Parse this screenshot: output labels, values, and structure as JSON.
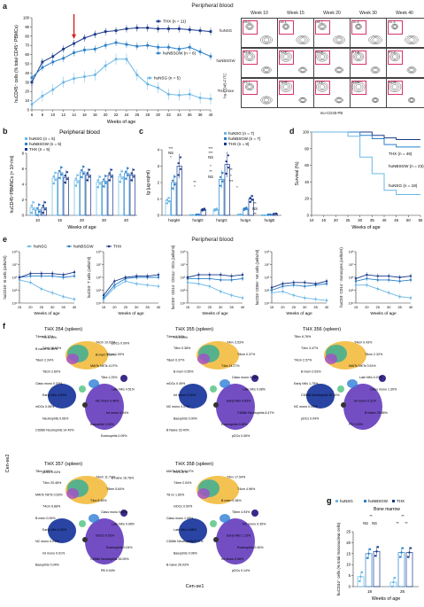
{
  "a": {
    "letter": "a",
    "title": "Peripheral blood",
    "ylabel": "huCD45⁺ cells (% total CD45⁺ PBMCs)",
    "xlabel": "Weeks of age",
    "legend": [
      "THX (n = 11)",
      "huNBSGW (n = 6)",
      "huNSG (n = 5)"
    ],
    "colors": [
      "#1a3a8a",
      "#2a80c9",
      "#6ab7e6"
    ],
    "yticks": [
      "0",
      "10",
      "20",
      "30",
      "40",
      "50",
      "60",
      "70",
      "80",
      "90",
      "100"
    ],
    "xticks": [
      "6",
      "8",
      "10",
      "12",
      "14",
      "16",
      "18",
      "20",
      "22",
      "24",
      "26",
      "28",
      "30",
      "32",
      "34",
      "36",
      "38",
      "40"
    ],
    "flow": {
      "weeks": [
        "Week 10",
        "Week 15",
        "Week 20",
        "Week 30",
        "Week 40"
      ],
      "rows": [
        "huNSG",
        "huNBSGW",
        "THX mice"
      ],
      "values": [
        [
          "25.0",
          "15.1",
          "28.7",
          "11.3",
          "11.3"
        ],
        [
          "52.4",
          "70.1",
          "66.5",
          "57.8",
          "57.7"
        ],
        [
          "33.7",
          "75.3",
          "71.1",
          "83.8",
          "81.3"
        ]
      ],
      "yaxis": "hu-CD45-FITC",
      "xaxis": "mo-CD45-PB"
    }
  },
  "b": {
    "letter": "b",
    "title": "Peripheral blood",
    "legend": [
      "huNSG (n = 5)",
      "huNBSGW (n = 5)",
      "THX (n = 5)"
    ],
    "ylabel": "huCD45⁺PBMNCs (× 10⁵/ml)",
    "xlabel": "Weeks of age",
    "xticks": [
      "10",
      "15",
      "20",
      "30",
      "40"
    ],
    "yticks": [
      "0",
      "2",
      "4",
      "6",
      "8"
    ]
  },
  "c": {
    "letter": "c",
    "legend": [
      "huNSG (n = 7)",
      "huNBSGW (n = 7)",
      "THX (n = 8)"
    ],
    "ylabel": "Ig (µg eq/ml)",
    "xticks": [
      "huIgM",
      "huIgD",
      "huIgG",
      "huIgA",
      "huIgE"
    ],
    "yticks": [
      "0",
      "1",
      "2",
      "3",
      "4"
    ],
    "sig": [
      "***",
      "NS",
      "*",
      "**",
      "*",
      "***",
      "***",
      "NS",
      "*",
      "**",
      "NS",
      "**",
      "*",
      "***",
      "**",
      "NS",
      "**",
      "*"
    ]
  },
  "d": {
    "letter": "d",
    "ylabel": "Survival (%)",
    "xlabel": "Weeks of age",
    "xticks": [
      "10",
      "15",
      "20",
      "25",
      "30",
      "35",
      "40",
      "45",
      "50",
      "55"
    ],
    "yticks": [
      "0",
      "20",
      "40",
      "60",
      "80",
      "100"
    ],
    "legend": [
      "THX (n = 46)",
      "huNBSGW (n = 23)",
      "huNSG (n = 18)"
    ]
  },
  "e": {
    "letter": "e",
    "title": "Peripheral blood",
    "legend": [
      "huNSG",
      "huNBSGW",
      "THX"
    ],
    "xlabel": "Weeks of age",
    "panels": [
      {
        "ylabel": "huCD19⁺ B cells (cells/ml)"
      },
      {
        "ylabel": "huCD3⁺ T cells (cells/ml)"
      },
      {
        "ylabel": "huCD3⁻ CD14⁻ CD11c⁺ DCs (cells/ml)"
      },
      {
        "ylabel": "huCD3⁻CD56⁺ NK cells (cells/ml)"
      },
      {
        "ylabel": "huCD3⁻CD14⁺ monocytes (cells/ml)"
      }
    ],
    "xticks": [
      "15",
      "20",
      "25",
      "30",
      "35",
      "40"
    ],
    "yticks": [
      "10⁴",
      "10⁵",
      "10⁶",
      "10⁷",
      "10⁸"
    ]
  },
  "f": {
    "letter": "f",
    "titles": [
      "THX 354 (spleen)",
      "THX 355 (spleen)",
      "THX 356 (spleen)",
      "THX 357 (spleen)",
      "THX 358 (spleen)"
    ],
    "xaxis": "Cen-se1",
    "yaxis": "Cen-se2",
    "labels354": [
      "T4em 5.12%",
      "T4cm 10.02%",
      "T4nv 16.62%",
      "T8 nv 1.00%",
      "T8em 2.24%",
      "MAITs NKTs 4.07%",
      "T8cm 2.60%",
      "T8ra 1.25%",
      "Class mono 0.33%",
      "Late NKs 4.51%",
      "Early NKs 4.53%",
      "NC mono 0.46%",
      "mDCs 0.06%",
      "Int mono 0.04%",
      "Neutrophils 0.06%",
      "Basophils 0.02%",
      "CD66b Neutrophils 14.49%",
      "Eosinophils 0.05%",
      "PB 0.44%",
      "pDCs 0.09%",
      "B naive 32.80%",
      "B mem 3.30%"
    ],
    "labels355": [
      "T4em 1.54%",
      "T4nv 3.53%",
      "T8nv 0.38%",
      "T8cm 0.37%",
      "T8em 0.37%",
      "T4ra 14.27%",
      "B mem 0.55%",
      "Class mono 0.14%",
      "mDCs 0.49%",
      "Late NKs 0.08%",
      "Int mono 0.20%",
      "Early NKs 4.63%",
      "NC mono 0.07%",
      "CD66b Neutrophils 8.47%",
      "Basophils 0.00%",
      "Eosinophils 0.06%",
      "B Naive 33.40%",
      "pDCs 0.06%",
      "PB 0.64%"
    ],
    "labels356": [
      "T8nv 6.76%",
      "T4em 0.43%",
      "T4nv 3.47%",
      "T8cm 2.32%",
      "T4cm 2.57%",
      "MAITs NKTs 0.51%",
      "B mem 0.53%",
      "Late NKs 0.07%",
      "Early NKs 1.75%",
      "Class mono 1.30%",
      "CD66b Neutrophils 30.14%",
      "Int mono 0.11%",
      "NC mono 0.05%",
      "B Naive 29.86%",
      "pDCs 0.04%",
      "PB 0.03%"
    ],
    "labels357": [
      "T8nv 0.69%",
      "T4em 11.71%",
      "T4nv 20.46%",
      "T8em 5.64%",
      "MAITs NKTs 0.53%",
      "T4ra 5.45%",
      "T4cm 6.88%",
      "Class mono 0.02%",
      "B mem 0.05%",
      "Late NKs 0.08%",
      "Early NKs 0.00%",
      "mDCs 0.02%",
      "NC mono 0.01%",
      "Eosinophils 0.04%",
      "Int mono 0.01%",
      "CD66b Neutrophils 35.05%",
      "Basophils 0.04%",
      "PB 0.04%",
      "pDCs 0.04%",
      "B naive 16.78%"
    ],
    "labels358": [
      "MAITs NKTs 0.07%",
      "T4nv 17.94%",
      "T4em 2.04%",
      "T4cm 4.96%",
      "T8 nv 1.60%",
      "B mem 0.38%",
      "mDCs 0.50%",
      "T8em 4.93%",
      "Class mono 1.08%",
      "NC mono 0.35%",
      "Late NKs 0.66%",
      "Early NKs 1.15%",
      "CD66b Neutrophils 5.77%",
      "Eosinophils 0.45%",
      "Basophils 0.06%",
      "Int mono 0.06%",
      "B naive 26.03%",
      "pDCs 0.14%",
      "PB 0.07%"
    ]
  },
  "g": {
    "letter": "g",
    "legend": [
      "huNSG",
      "huNBSGW",
      "THX"
    ],
    "title": "Bone marrow",
    "ylabel": "huCD34⁺ cells (% total mononuclear cells)",
    "xlabel": "Weeks of age",
    "xticks": [
      "18",
      "25"
    ],
    "yticks": [
      "0",
      "5",
      "10",
      "15",
      "20",
      "25"
    ],
    "sig": [
      "**",
      "**",
      "NS",
      "NS",
      "**",
      "**"
    ]
  },
  "chart_data": [
    {
      "type": "line",
      "title": "Peripheral blood",
      "xlabel": "Weeks of age",
      "ylabel": "huCD45⁺ cells (% total CD45⁺ PBMCs)",
      "ylim": [
        0,
        100
      ],
      "x": [
        6,
        8,
        10,
        12,
        14,
        16,
        18,
        20,
        22,
        24,
        26,
        28,
        30,
        32,
        34,
        36,
        38,
        40
      ],
      "series": [
        {
          "name": "THX (n = 11)",
          "values": [
            30,
            52,
            58,
            66,
            72,
            78,
            82,
            85,
            86,
            88,
            89,
            89,
            88,
            88,
            88,
            87,
            86,
            85
          ]
        },
        {
          "name": "huNBSGW (n = 6)",
          "values": [
            35,
            46,
            52,
            56,
            62,
            65,
            66,
            70,
            73,
            71,
            69,
            70,
            68,
            68,
            66,
            68,
            63,
            58
          ]
        },
        {
          "name": "huNSG (n = 5)",
          "values": [
            6,
            15,
            22,
            30,
            34,
            36,
            38,
            48,
            55,
            55,
            38,
            28,
            24,
            17,
            16,
            17,
            13,
            12
          ]
        }
      ]
    },
    {
      "type": "bar",
      "title": "Peripheral blood",
      "categories": [
        "10",
        "15",
        "20",
        "30",
        "40"
      ],
      "xlabel": "Weeks of age",
      "ylabel": "huCD45⁺PBMNCs (× 10⁵/ml)",
      "ylim": [
        0,
        8
      ],
      "series": [
        {
          "name": "huNSG (n = 5)",
          "values": [
            1.0,
            4.8,
            4.5,
            4.3,
            5.0
          ]
        },
        {
          "name": "huNBSGW (n = 5)",
          "values": [
            0.7,
            5.5,
            5.6,
            4.4,
            5.4
          ]
        },
        {
          "name": "THX (n = 5)",
          "values": [
            1.0,
            4.9,
            5.2,
            5.2,
            5.2
          ]
        }
      ]
    },
    {
      "type": "bar",
      "categories": [
        "huIgM",
        "huIgD",
        "huIgG",
        "huIgA",
        "huIgE"
      ],
      "ylabel": "Ig (µg eq/ml)",
      "ylim": [
        0,
        4
      ],
      "series": [
        {
          "name": "huNSG (n = 7)",
          "values": [
            0.9,
            0.02,
            0.35,
            0.05,
            0.01
          ]
        },
        {
          "name": "huNBSGW (n = 7)",
          "values": [
            2.0,
            0.05,
            2.2,
            0.4,
            0.05
          ]
        },
        {
          "name": "THX (n = 8)",
          "values": [
            3.0,
            0.35,
            3.1,
            1.0,
            0.1
          ]
        }
      ]
    },
    {
      "type": "line",
      "xlabel": "Weeks of age",
      "ylabel": "Survival (%)",
      "ylim": [
        0,
        100
      ],
      "x": [
        10,
        15,
        20,
        25,
        30,
        35,
        40,
        45,
        50,
        55
      ],
      "series": [
        {
          "name": "THX (n = 46)",
          "values": [
            100,
            100,
            100,
            100,
            100,
            96,
            93,
            91,
            91,
            91
          ]
        },
        {
          "name": "huNBSGW (n = 23)",
          "values": [
            100,
            100,
            100,
            100,
            96,
            92,
            85,
            82,
            82,
            82
          ]
        },
        {
          "name": "huNSG (n = 18)",
          "values": [
            100,
            100,
            100,
            95,
            70,
            50,
            30,
            25,
            25,
            25
          ]
        }
      ]
    },
    {
      "type": "line",
      "xlabel": "Weeks of age",
      "ylabel": "huCD19⁺ B cells (cells/ml)",
      "x": [
        15,
        20,
        25,
        30,
        35,
        40
      ],
      "series": [
        {
          "name": "huNSG",
          "values": [
            5.8,
            5.6,
            5.1,
            4.8,
            4.5,
            4.3
          ]
        },
        {
          "name": "huNBSGW",
          "values": [
            6.0,
            6.1,
            6.1,
            6.1,
            6.0,
            6.1
          ]
        },
        {
          "name": "THX",
          "values": [
            6.0,
            6.3,
            6.3,
            6.3,
            6.2,
            6.4
          ]
        }
      ]
    },
    {
      "type": "line",
      "xlabel": "Weeks of age",
      "ylabel": "huCD3⁺ T cells (cells/ml)",
      "x": [
        15,
        20,
        25,
        30,
        35,
        40
      ],
      "series": [
        {
          "name": "huNSG",
          "values": [
            4.3,
            5.2,
            5.7,
            5.5,
            5.4,
            5.3
          ]
        },
        {
          "name": "huNBSGW",
          "values": [
            4.4,
            5.4,
            5.9,
            6.0,
            6.0,
            6.0
          ]
        },
        {
          "name": "THX",
          "values": [
            4.6,
            5.7,
            6.0,
            6.1,
            6.1,
            6.2
          ]
        }
      ]
    },
    {
      "type": "line",
      "xlabel": "Weeks of age",
      "ylabel": "huCD3⁻ CD14⁻ CD11c⁺ DCs (cells/ml)",
      "x": [
        15,
        20,
        25,
        30,
        35,
        40
      ],
      "series": [
        {
          "name": "huNSG",
          "values": [
            5.6,
            5.5,
            5.3,
            4.9,
            4.6,
            4.4
          ]
        },
        {
          "name": "huNBSGW",
          "values": [
            5.9,
            5.9,
            5.9,
            5.8,
            5.8,
            5.9
          ]
        },
        {
          "name": "THX",
          "values": [
            6.0,
            6.2,
            6.2,
            6.2,
            6.1,
            6.2
          ]
        }
      ]
    },
    {
      "type": "line",
      "xlabel": "Weeks of age",
      "ylabel": "huCD3⁻CD56⁺ NK cells (cells/ml)",
      "x": [
        15,
        20,
        25,
        30,
        35,
        40
      ],
      "series": [
        {
          "name": "huNSG",
          "values": [
            4.8,
            4.9,
            4.6,
            4.4,
            4.3,
            4.2
          ]
        },
        {
          "name": "huNBSGW",
          "values": [
            5.0,
            5.3,
            5.4,
            5.3,
            5.4,
            5.5
          ]
        },
        {
          "name": "THX",
          "values": [
            5.2,
            5.5,
            5.6,
            5.6,
            5.5,
            5.7
          ]
        }
      ]
    },
    {
      "type": "line",
      "xlabel": "Weeks of age",
      "ylabel": "huCD3⁻CD14⁺ monocytes (cells/ml)",
      "x": [
        15,
        20,
        25,
        30,
        35,
        40
      ],
      "series": [
        {
          "name": "huNSG",
          "values": [
            5.4,
            5.4,
            5.1,
            4.8,
            4.5,
            4.4
          ]
        },
        {
          "name": "huNBSGW",
          "values": [
            5.7,
            5.9,
            5.8,
            5.8,
            5.7,
            5.8
          ]
        },
        {
          "name": "THX",
          "values": [
            5.9,
            6.2,
            6.1,
            6.1,
            6.0,
            6.1
          ]
        }
      ]
    },
    {
      "type": "bar",
      "title": "Bone marrow",
      "categories": [
        "18",
        "25"
      ],
      "xlabel": "Weeks of age",
      "ylabel": "huCD34⁺ cells (% total mononuclear cells)",
      "ylim": [
        0,
        25
      ],
      "series": [
        {
          "name": "huNSG",
          "values": [
            4.5,
            2.0
          ]
        },
        {
          "name": "huNBSGW",
          "values": [
            15.0,
            15.5
          ]
        },
        {
          "name": "THX",
          "values": [
            16.0,
            15.5
          ]
        }
      ]
    }
  ]
}
